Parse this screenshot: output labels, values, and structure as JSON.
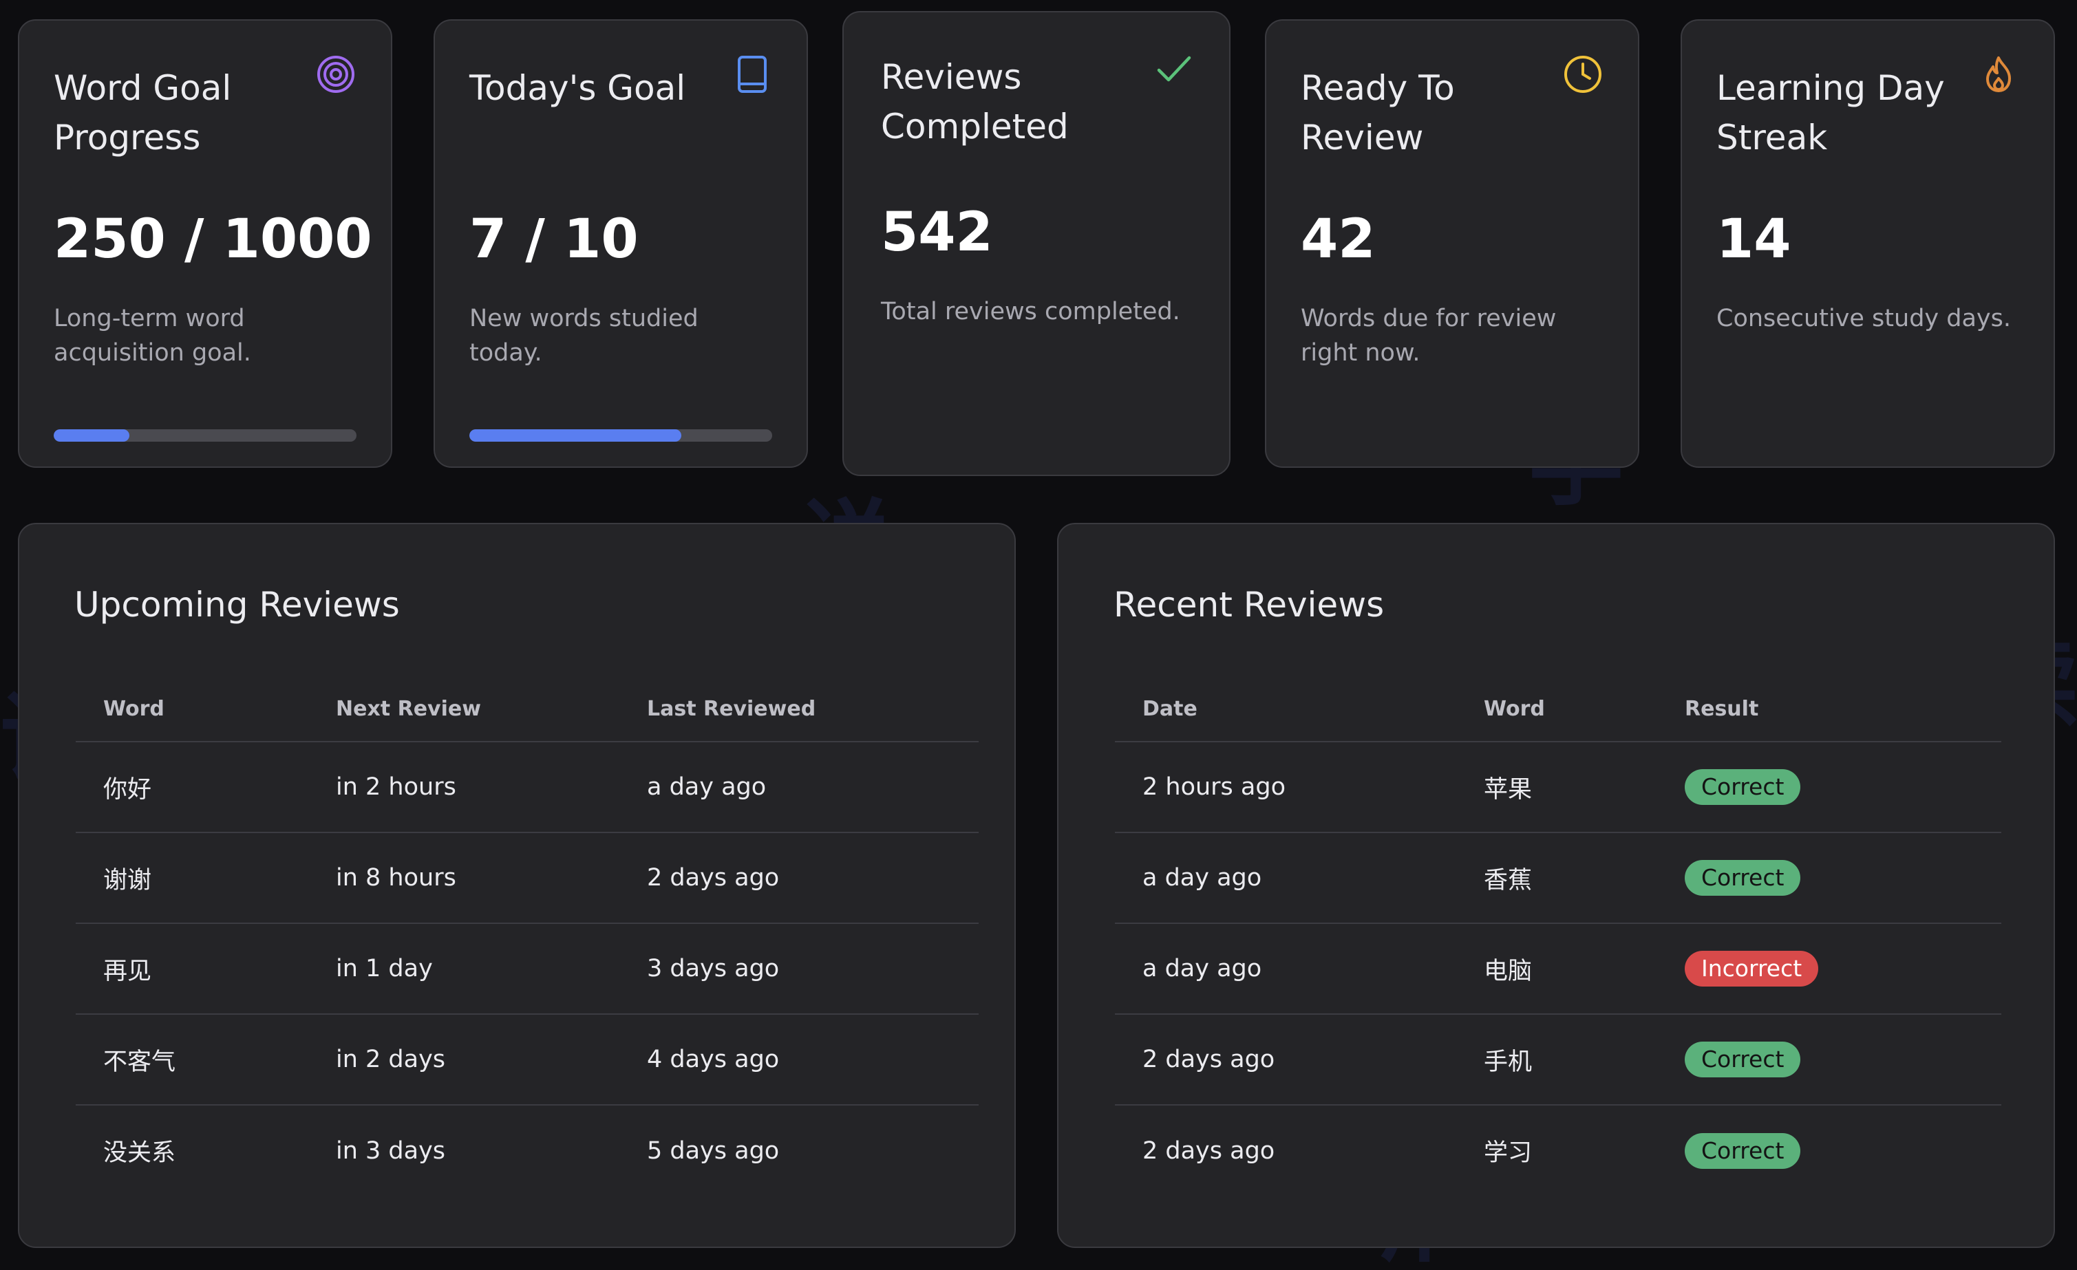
{
  "colors": {
    "accent_blue": "#5a7ef0",
    "target_icon": "#a06cf0",
    "book_icon": "#5a8ef0",
    "check_icon": "#5bc27a",
    "clock_icon": "#f0c23a",
    "flame_icon": "#e08a3a",
    "correct_badge": "#5bb17b",
    "incorrect_badge": "#d84a4a"
  },
  "stats": [
    {
      "title": "Word Goal Progress",
      "value": "250 / 1000",
      "description": "Long-term word acquisition goal.",
      "icon": "target-icon",
      "progress": 0.25
    },
    {
      "title": "Today's Goal",
      "value": "7 / 10",
      "description": "New words studied today.",
      "icon": "book-icon",
      "progress": 0.7
    },
    {
      "title": "Reviews Completed",
      "value": "542",
      "description": "Total reviews completed.",
      "icon": "check-icon"
    },
    {
      "title": "Ready To Review",
      "value": "42",
      "description": "Words due for review right now.",
      "icon": "clock-icon"
    },
    {
      "title": "Learning Day Streak",
      "value": "14",
      "description": "Consecutive study days.",
      "icon": "flame-icon"
    }
  ],
  "upcoming": {
    "title": "Upcoming Reviews",
    "columns": [
      "Word",
      "Next Review",
      "Last Reviewed"
    ],
    "rows": [
      [
        "你好",
        "in 2 hours",
        "a day ago"
      ],
      [
        "谢谢",
        "in 8 hours",
        "2 days ago"
      ],
      [
        "再见",
        "in 1 day",
        "3 days ago"
      ],
      [
        "不客气",
        "in 2 days",
        "4 days ago"
      ],
      [
        "没关系",
        "in 3 days",
        "5 days ago"
      ]
    ]
  },
  "recent": {
    "title": "Recent Reviews",
    "columns": [
      "Date",
      "Word",
      "Result"
    ],
    "rows": [
      {
        "date": "2 hours ago",
        "word": "苹果",
        "result": "Correct",
        "status": "correct"
      },
      {
        "date": "a day ago",
        "word": "香蕉",
        "result": "Correct",
        "status": "correct"
      },
      {
        "date": "a day ago",
        "word": "电脑",
        "result": "Incorrect",
        "status": "incorrect"
      },
      {
        "date": "2 days ago",
        "word": "手机",
        "result": "Correct",
        "status": "correct"
      },
      {
        "date": "2 days ago",
        "word": "学习",
        "result": "Correct",
        "status": "correct"
      }
    ]
  }
}
